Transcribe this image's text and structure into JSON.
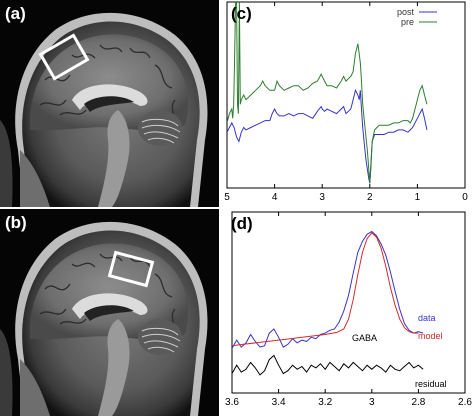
{
  "panels": {
    "a": {
      "label": "(a)"
    },
    "b": {
      "label": "(b)"
    },
    "c": {
      "label": "(c)"
    },
    "d": {
      "label": "(d)"
    }
  },
  "colors": {
    "post": "#3535c8",
    "pre": "#2e7d2e",
    "data": "#3535c8",
    "model": "#d42a2a",
    "residual": "#000000",
    "roi_box": "#ffffff"
  },
  "chart_data": [
    {
      "panel": "(c)",
      "type": "line",
      "xlabel": "",
      "ylabel": "",
      "xlim": [
        5,
        0
      ],
      "ylim": [
        -10,
        30
      ],
      "x_ticks": [
        "5",
        "4",
        "3",
        "2",
        "1",
        "0"
      ],
      "legend": {
        "placement": "top-right",
        "entries": [
          "post",
          "pre"
        ]
      },
      "series": [
        {
          "name": "post",
          "color": "#3535c8",
          "x": [
            5.0,
            4.95,
            4.9,
            4.85,
            4.8,
            4.75,
            4.7,
            4.65,
            4.6,
            4.5,
            4.4,
            4.3,
            4.2,
            4.1,
            4.05,
            4.0,
            3.95,
            3.9,
            3.8,
            3.7,
            3.6,
            3.5,
            3.4,
            3.3,
            3.2,
            3.1,
            3.02,
            3.0,
            2.95,
            2.9,
            2.8,
            2.7,
            2.6,
            2.55,
            2.5,
            2.45,
            2.4,
            2.35,
            2.3,
            2.25,
            2.22,
            2.2,
            2.15,
            2.1,
            2.08,
            2.05,
            2.02,
            2.0,
            1.98,
            1.95,
            1.9,
            1.85,
            1.8,
            1.7,
            1.6,
            1.5,
            1.4,
            1.3,
            1.2,
            1.15,
            1.1,
            1.05,
            1.0,
            0.95,
            0.9,
            0.85,
            0.8
          ],
          "y": [
            2.0,
            3.0,
            4.0,
            3.0,
            1.0,
            0.0,
            2.0,
            3.0,
            2.5,
            3.0,
            3.5,
            4.0,
            4.5,
            4.5,
            6.0,
            7.0,
            6.0,
            5.5,
            5.5,
            6.0,
            5.5,
            6.0,
            6.0,
            5.5,
            5.0,
            6.5,
            7.5,
            7.0,
            6.5,
            7.0,
            6.5,
            6.0,
            7.0,
            7.5,
            6.0,
            6.5,
            7.0,
            9.0,
            11.0,
            10.0,
            9.0,
            11.0,
            3.0,
            -2.0,
            -4.0,
            -6.0,
            -8.0,
            -9.0,
            -6.0,
            0.0,
            1.5,
            1.5,
            1.5,
            1.5,
            2.0,
            2.0,
            2.5,
            2.5,
            2.0,
            2.5,
            3.0,
            4.0,
            5.0,
            6.0,
            7.0,
            5.0,
            2.5
          ]
        },
        {
          "name": "pre",
          "color": "#2e7d2e",
          "x": [
            5.0,
            4.95,
            4.9,
            4.88,
            4.86,
            4.84,
            4.82,
            4.8,
            4.78,
            4.76,
            4.74,
            4.72,
            4.7,
            4.65,
            4.6,
            4.5,
            4.4,
            4.3,
            4.25,
            4.2,
            4.1,
            4.0,
            3.95,
            3.9,
            3.8,
            3.7,
            3.6,
            3.5,
            3.4,
            3.3,
            3.2,
            3.1,
            3.02,
            3.0,
            2.95,
            2.9,
            2.8,
            2.7,
            2.6,
            2.55,
            2.5,
            2.45,
            2.4,
            2.35,
            2.3,
            2.25,
            2.2,
            2.18,
            2.15,
            2.1,
            2.05,
            2.02,
            2.0,
            1.98,
            1.95,
            1.9,
            1.85,
            1.8,
            1.7,
            1.6,
            1.5,
            1.4,
            1.3,
            1.2,
            1.15,
            1.1,
            1.05,
            1.0,
            0.95,
            0.9,
            0.85,
            0.8
          ],
          "y": [
            4.0,
            6.0,
            7.0,
            5.0,
            8.0,
            18.0,
            30.0,
            32.0,
            8.0,
            6.0,
            30.0,
            8.0,
            9.0,
            10.0,
            9.0,
            10.0,
            11.0,
            12.0,
            13.0,
            12.0,
            11.0,
            11.0,
            13.0,
            12.0,
            11.0,
            11.5,
            12.0,
            12.0,
            11.0,
            11.5,
            12.5,
            13.0,
            14.5,
            14.0,
            13.0,
            12.0,
            12.0,
            11.5,
            13.0,
            14.0,
            13.0,
            13.5,
            14.0,
            15.0,
            19.0,
            21.0,
            17.0,
            14.0,
            8.0,
            3.0,
            -2.0,
            -6.0,
            -9.0,
            -5.0,
            0.0,
            2.5,
            3.0,
            3.5,
            3.5,
            3.5,
            4.0,
            4.0,
            4.5,
            4.5,
            4.0,
            5.0,
            7.0,
            9.0,
            11.0,
            12.0,
            10.0,
            8.0
          ]
        }
      ]
    },
    {
      "panel": "(d)",
      "type": "line",
      "xlabel": "",
      "ylabel": "",
      "xlim": [
        3.6,
        2.6
      ],
      "ylim": [
        -3,
        10
      ],
      "x_ticks": [
        "3.6",
        "3.4",
        "3.2",
        "3",
        "2.8",
        "2.6"
      ],
      "annotations": [
        "GABA",
        "residual"
      ],
      "legend": {
        "placement": "right",
        "entries": [
          "data",
          "model"
        ]
      },
      "series": [
        {
          "name": "data",
          "color": "#3535c8",
          "x": [
            3.6,
            3.58,
            3.56,
            3.54,
            3.52,
            3.5,
            3.48,
            3.46,
            3.44,
            3.42,
            3.4,
            3.38,
            3.36,
            3.34,
            3.32,
            3.3,
            3.28,
            3.26,
            3.24,
            3.22,
            3.2,
            3.18,
            3.16,
            3.14,
            3.12,
            3.1,
            3.08,
            3.06,
            3.04,
            3.02,
            3.0,
            2.98,
            2.96,
            2.94,
            2.92,
            2.9,
            2.88,
            2.86,
            2.84,
            2.82,
            2.8,
            2.78
          ],
          "y": [
            0.2,
            0.8,
            0.3,
            0.6,
            1.2,
            0.7,
            0.3,
            0.4,
            1.3,
            1.6,
            1.0,
            0.3,
            0.5,
            0.9,
            0.6,
            0.8,
            0.7,
            1.0,
            0.9,
            1.2,
            1.3,
            1.5,
            1.6,
            2.1,
            2.9,
            4.0,
            5.6,
            7.1,
            7.9,
            8.4,
            8.6,
            8.3,
            7.7,
            6.9,
            5.7,
            4.3,
            3.0,
            2.0,
            1.5,
            1.3,
            1.4,
            1.3
          ]
        },
        {
          "name": "model",
          "color": "#d42a2a",
          "x": [
            3.6,
            3.55,
            3.5,
            3.45,
            3.4,
            3.35,
            3.3,
            3.25,
            3.2,
            3.15,
            3.12,
            3.1,
            3.08,
            3.06,
            3.04,
            3.02,
            3.0,
            2.98,
            2.96,
            2.94,
            2.92,
            2.9,
            2.88,
            2.86,
            2.84,
            2.82,
            2.8
          ],
          "y": [
            0.4,
            0.5,
            0.6,
            0.7,
            0.8,
            0.9,
            1.0,
            1.1,
            1.2,
            1.35,
            1.6,
            2.3,
            3.7,
            5.5,
            7.1,
            8.1,
            8.5,
            8.2,
            7.4,
            6.1,
            4.6,
            3.3,
            2.3,
            1.7,
            1.4,
            1.3,
            1.3
          ]
        },
        {
          "name": "residual",
          "color": "#000000",
          "x": [
            3.6,
            3.58,
            3.56,
            3.54,
            3.52,
            3.5,
            3.48,
            3.46,
            3.44,
            3.42,
            3.4,
            3.38,
            3.36,
            3.34,
            3.32,
            3.3,
            3.28,
            3.26,
            3.24,
            3.22,
            3.2,
            3.18,
            3.16,
            3.14,
            3.12,
            3.1,
            3.08,
            3.06,
            3.04,
            3.02,
            3.0,
            2.98,
            2.96,
            2.94,
            2.92,
            2.9,
            2.88,
            2.86,
            2.84,
            2.82,
            2.8,
            2.78
          ],
          "y": [
            -1.6,
            -1.0,
            -1.5,
            -1.3,
            -0.8,
            -1.2,
            -1.7,
            -1.4,
            -0.6,
            -0.3,
            -1.0,
            -1.6,
            -1.4,
            -1.0,
            -1.3,
            -1.1,
            -1.5,
            -1.0,
            -1.2,
            -0.9,
            -1.3,
            -0.8,
            -1.1,
            -1.4,
            -0.9,
            -1.2,
            -0.8,
            -1.1,
            -1.4,
            -1.0,
            -1.3,
            -1.0,
            -1.2,
            -1.5,
            -1.0,
            -1.3,
            -1.4,
            -1.1,
            -0.8,
            -1.2,
            -1.0,
            -1.3
          ]
        }
      ]
    }
  ]
}
